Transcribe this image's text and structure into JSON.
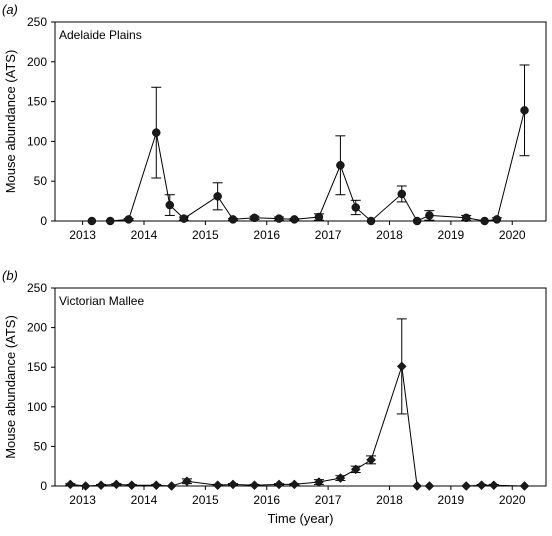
{
  "chart_data": [
    {
      "type": "line",
      "panel_label": "(a)",
      "region": "Adelaide Plains",
      "ylabel": "Mouse abundance (ATS)",
      "xlabel": "",
      "ylim": [
        0,
        250
      ],
      "yticks": [
        0,
        50,
        100,
        150,
        200,
        250
      ],
      "xlim": [
        2012.55,
        2020.55
      ],
      "xticks": [
        2013,
        2014,
        2015,
        2016,
        2017,
        2018,
        2019,
        2020
      ],
      "marker": "circle",
      "series": [
        {
          "x": [
            2013.15,
            2013.45,
            2013.75,
            2014.2,
            2014.42,
            2014.65,
            2015.2,
            2015.45,
            2015.8,
            2016.2,
            2016.45,
            2016.85,
            2017.2,
            2017.45,
            2017.7,
            2018.2,
            2018.45,
            2018.65,
            2019.25,
            2019.55,
            2019.75,
            2020.2
          ],
          "y": [
            0,
            0,
            2,
            111,
            20,
            3,
            31,
            2,
            4,
            3,
            2,
            5,
            70,
            17,
            0,
            34,
            0,
            7,
            4,
            0,
            2,
            139
          ],
          "err": [
            0,
            0,
            1,
            57,
            13,
            2,
            17,
            1,
            2,
            2,
            1,
            4,
            37,
            9,
            0,
            10,
            0,
            6,
            3,
            0,
            2,
            57
          ]
        }
      ]
    },
    {
      "type": "line",
      "panel_label": "(b)",
      "region": "Victorian Mallee",
      "ylabel": "Mouse abundance (ATS)",
      "xlabel": "Time (year)",
      "ylim": [
        0,
        250
      ],
      "yticks": [
        0,
        50,
        100,
        150,
        200,
        250
      ],
      "xlim": [
        2012.55,
        2020.55
      ],
      "xticks": [
        2013,
        2014,
        2015,
        2016,
        2017,
        2018,
        2019,
        2020
      ],
      "marker": "diamond",
      "series": [
        {
          "x": [
            2012.8,
            2013.05,
            2013.3,
            2013.55,
            2013.8,
            2014.2,
            2014.45,
            2014.7,
            2015.2,
            2015.45,
            2015.8,
            2016.2,
            2016.45,
            2016.85,
            2017.2,
            2017.45,
            2017.7,
            2018.2,
            2018.45,
            2018.65,
            2019.25,
            2019.5,
            2019.7,
            2020.2
          ],
          "y": [
            2,
            0,
            1,
            2,
            1,
            1,
            0,
            6,
            1,
            2,
            1,
            2,
            2,
            5,
            10,
            21,
            33,
            151,
            0,
            0,
            0,
            1,
            1,
            0
          ],
          "err": [
            1,
            0,
            1,
            1,
            1,
            1,
            0,
            3,
            1,
            1,
            1,
            1,
            1,
            3,
            3,
            4,
            5,
            60,
            0,
            0,
            0,
            1,
            1,
            0
          ]
        }
      ]
    }
  ]
}
